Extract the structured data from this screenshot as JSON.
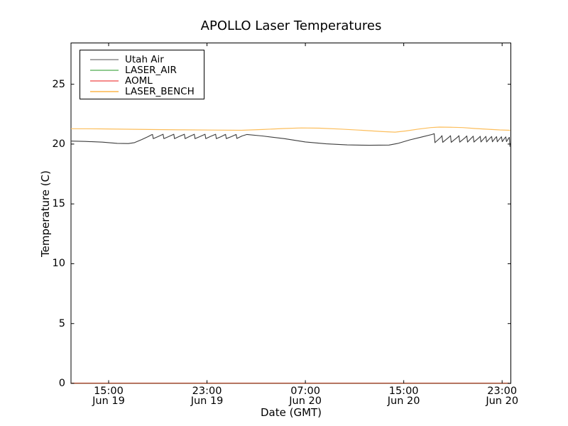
{
  "chart_data": {
    "type": "line",
    "title": "APOLLO Laser Temperatures",
    "xlabel": "Date (GMT)",
    "ylabel": "Temperature (C)",
    "xlim": [
      11.94,
      47.71
    ],
    "ylim": [
      0,
      28.45
    ],
    "x_unit": "hours since Jun 19 00:00 GMT",
    "grid": false,
    "legend_position": "upper left",
    "axis_color": "#000000",
    "background": "#ffffff",
    "yticks": [
      0,
      5,
      10,
      15,
      20,
      25
    ],
    "xticks": [
      {
        "t": 15,
        "time": "15:00",
        "date": "Jun 19"
      },
      {
        "t": 23,
        "time": "23:00",
        "date": "Jun 19"
      },
      {
        "t": 31,
        "time": "07:00",
        "date": "Jun 20"
      },
      {
        "t": 39,
        "time": "15:00",
        "date": "Jun 20"
      },
      {
        "t": 47,
        "time": "23:00",
        "date": "Jun 20"
      }
    ],
    "series": [
      {
        "name": "Utah Air",
        "color": "#3d3d3d",
        "legend_color": "#a8a8a8",
        "width": 1.1,
        "points": [
          [
            11.94,
            20.25
          ],
          [
            13.1,
            20.22
          ],
          [
            14.5,
            20.16
          ],
          [
            15.7,
            20.06
          ],
          [
            16.6,
            20.04
          ],
          [
            17.1,
            20.12
          ],
          [
            17.7,
            20.38
          ],
          [
            18.2,
            20.62
          ],
          [
            18.5,
            20.78
          ],
          [
            18.57,
            20.8
          ],
          [
            18.63,
            20.45
          ],
          [
            19.0,
            20.62
          ],
          [
            19.43,
            20.82
          ],
          [
            19.49,
            20.46
          ],
          [
            19.86,
            20.62
          ],
          [
            20.3,
            20.82
          ],
          [
            20.36,
            20.45
          ],
          [
            20.73,
            20.63
          ],
          [
            21.16,
            20.82
          ],
          [
            21.22,
            20.46
          ],
          [
            21.57,
            20.63
          ],
          [
            21.97,
            20.82
          ],
          [
            22.03,
            20.45
          ],
          [
            22.44,
            20.63
          ],
          [
            22.84,
            20.82
          ],
          [
            22.9,
            20.46
          ],
          [
            23.27,
            20.63
          ],
          [
            23.7,
            20.82
          ],
          [
            23.76,
            20.45
          ],
          [
            24.14,
            20.62
          ],
          [
            24.51,
            20.81
          ],
          [
            24.57,
            20.46
          ],
          [
            24.97,
            20.62
          ],
          [
            25.37,
            20.8
          ],
          [
            25.43,
            20.47
          ],
          [
            25.85,
            20.68
          ],
          [
            26.25,
            20.8
          ],
          [
            27.5,
            20.68
          ],
          [
            29.3,
            20.45
          ],
          [
            31.0,
            20.18
          ],
          [
            32.7,
            20.02
          ],
          [
            34.4,
            19.93
          ],
          [
            36.2,
            19.9
          ],
          [
            37.8,
            19.92
          ],
          [
            38.5,
            20.05
          ],
          [
            39.5,
            20.35
          ],
          [
            40.5,
            20.6
          ],
          [
            41.3,
            20.8
          ],
          [
            41.48,
            20.87
          ],
          [
            41.54,
            20.12
          ],
          [
            42.0,
            20.55
          ],
          [
            42.11,
            20.7
          ],
          [
            42.17,
            20.15
          ],
          [
            42.65,
            20.55
          ],
          [
            42.8,
            20.7
          ],
          [
            42.86,
            20.15
          ],
          [
            43.35,
            20.55
          ],
          [
            43.49,
            20.7
          ],
          [
            43.55,
            20.16
          ],
          [
            44.0,
            20.54
          ],
          [
            44.13,
            20.68
          ],
          [
            44.19,
            20.17
          ],
          [
            44.52,
            20.53
          ],
          [
            44.65,
            20.66
          ],
          [
            44.71,
            20.17
          ],
          [
            45.1,
            20.52
          ],
          [
            45.22,
            20.65
          ],
          [
            45.28,
            20.18
          ],
          [
            45.56,
            20.51
          ],
          [
            45.68,
            20.64
          ],
          [
            45.74,
            20.18
          ],
          [
            46.02,
            20.5
          ],
          [
            46.15,
            20.63
          ],
          [
            46.21,
            20.19
          ],
          [
            46.44,
            20.5
          ],
          [
            46.55,
            20.62
          ],
          [
            46.61,
            20.19
          ],
          [
            46.84,
            20.49
          ],
          [
            46.95,
            20.61
          ],
          [
            47.01,
            20.2
          ],
          [
            47.2,
            20.48
          ],
          [
            47.3,
            20.6
          ],
          [
            47.36,
            20.2
          ],
          [
            47.52,
            20.47
          ],
          [
            47.59,
            20.57
          ],
          [
            47.63,
            19.78
          ]
        ]
      },
      {
        "name": "LASER_AIR",
        "color": "#66b366",
        "legend_color": "#90cb90",
        "width": 1.1,
        "points": [
          [
            11.94,
            0.02
          ],
          [
            47.65,
            0.02
          ]
        ]
      },
      {
        "name": "AOML",
        "color": "#b5341f",
        "legend_color": "#f58b8b",
        "width": 1.1,
        "points": [
          [
            11.94,
            0.02
          ],
          [
            47.65,
            0.02
          ]
        ]
      },
      {
        "name": "LASER_BENCH",
        "color": "#fcbe5c",
        "legend_color": "#fdc878",
        "width": 1.2,
        "points": [
          [
            11.94,
            21.28
          ],
          [
            14.25,
            21.27
          ],
          [
            16.56,
            21.24
          ],
          [
            18.86,
            21.21
          ],
          [
            21.17,
            21.19
          ],
          [
            23.48,
            21.17
          ],
          [
            25.79,
            21.15
          ],
          [
            27.52,
            21.22
          ],
          [
            29.25,
            21.3
          ],
          [
            30.69,
            21.35
          ],
          [
            32.13,
            21.33
          ],
          [
            33.86,
            21.25
          ],
          [
            35.6,
            21.15
          ],
          [
            37.33,
            21.04
          ],
          [
            38.3,
            21.0
          ],
          [
            39.2,
            21.1
          ],
          [
            40.2,
            21.25
          ],
          [
            41.2,
            21.38
          ],
          [
            41.9,
            21.42
          ],
          [
            43.0,
            21.4
          ],
          [
            43.8,
            21.38
          ],
          [
            44.8,
            21.3
          ],
          [
            45.8,
            21.24
          ],
          [
            46.8,
            21.18
          ],
          [
            47.65,
            21.15
          ]
        ]
      }
    ]
  }
}
